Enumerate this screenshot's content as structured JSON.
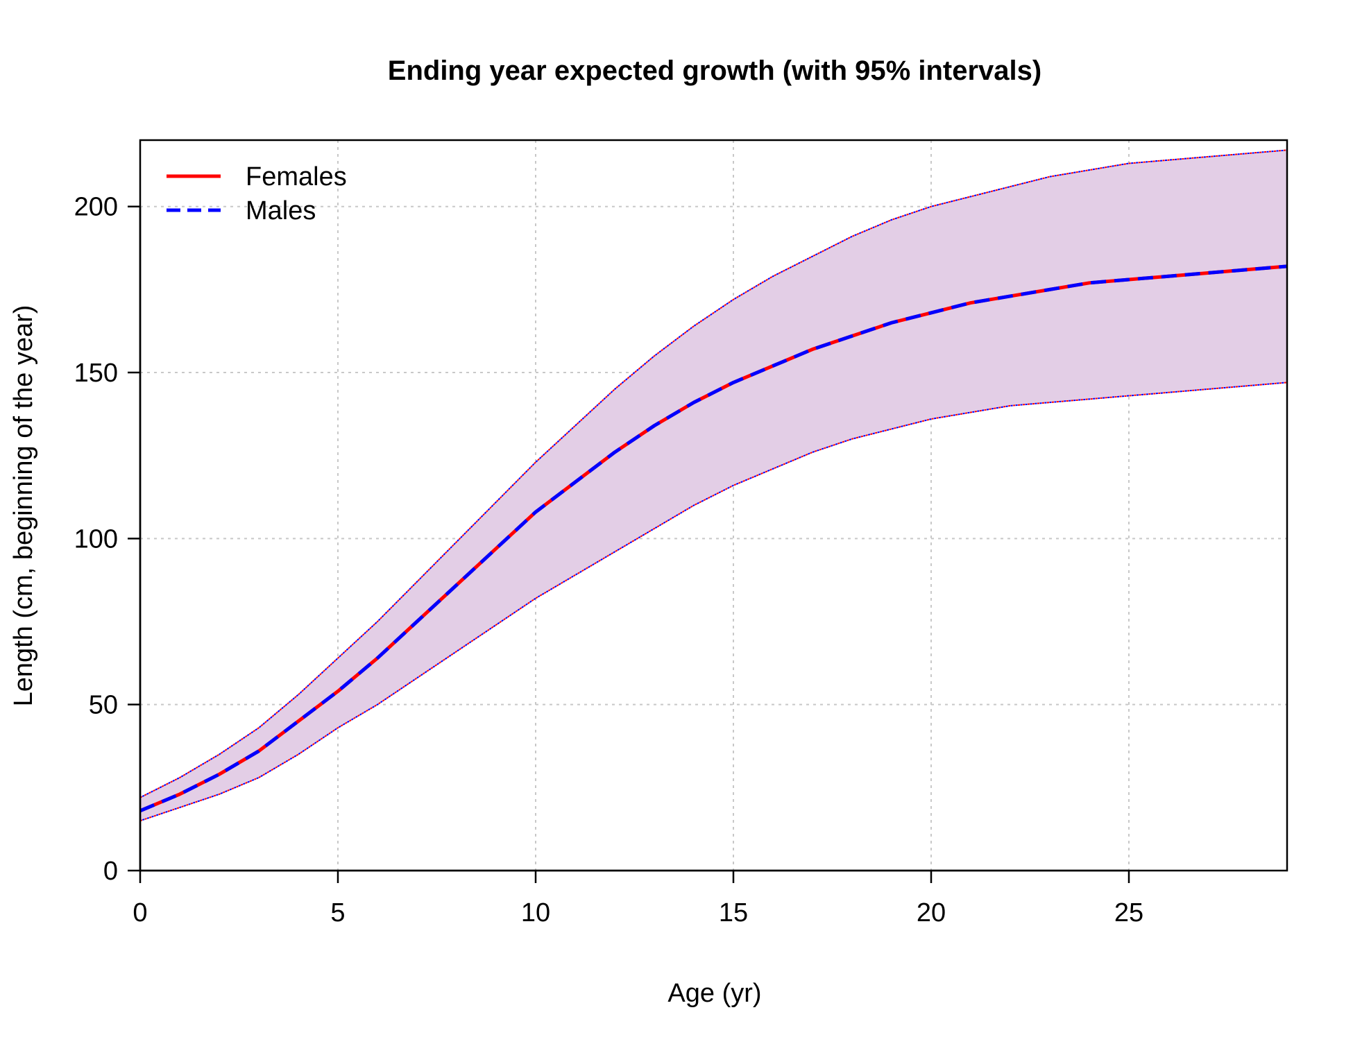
{
  "colors": {
    "background": "#ffffff",
    "band": "#e3cee6",
    "females": "#ff0000",
    "males": "#0000ff",
    "grid": "#c8c8c8",
    "axis": "#000000"
  },
  "chart_data": {
    "type": "line",
    "title": "Ending year expected growth (with 95% intervals)",
    "xlabel": "Age (yr)",
    "ylabel": "Length (cm, beginning of the year)",
    "xlim": [
      0,
      29
    ],
    "ylim": [
      0,
      220
    ],
    "x_ticks": [
      0,
      5,
      10,
      15,
      20,
      25
    ],
    "y_ticks": [
      0,
      50,
      100,
      150,
      200
    ],
    "grid": true,
    "legend_position": "top-left",
    "legend": [
      {
        "label": "Females",
        "color": "#ff0000",
        "style": "solid"
      },
      {
        "label": "Males",
        "color": "#0000ff",
        "style": "dashed"
      }
    ],
    "x": [
      0,
      1,
      2,
      3,
      4,
      5,
      6,
      7,
      8,
      9,
      10,
      11,
      12,
      13,
      14,
      15,
      16,
      17,
      18,
      19,
      20,
      21,
      22,
      23,
      24,
      25,
      26,
      27,
      28,
      29
    ],
    "series": [
      {
        "name": "Females",
        "color": "#ff0000",
        "style": "solid",
        "values": [
          18,
          23,
          29,
          36,
          45,
          54,
          64,
          75,
          86,
          97,
          108,
          117,
          126,
          134,
          141,
          147,
          152,
          157,
          161,
          165,
          168,
          171,
          173,
          175,
          177,
          178,
          179,
          180,
          181,
          182
        ],
        "upper": [
          22,
          28,
          35,
          43,
          53,
          64,
          75,
          87,
          99,
          111,
          123,
          134,
          145,
          155,
          164,
          172,
          179,
          185,
          191,
          196,
          200,
          203,
          206,
          209,
          211,
          213,
          214,
          215,
          216,
          217
        ],
        "lower": [
          15,
          19,
          23,
          28,
          35,
          43,
          50,
          58,
          66,
          74,
          82,
          89,
          96,
          103,
          110,
          116,
          121,
          126,
          130,
          133,
          136,
          138,
          140,
          141,
          142,
          143,
          144,
          145,
          146,
          147
        ]
      },
      {
        "name": "Males",
        "color": "#0000ff",
        "style": "dashed",
        "values": [
          18,
          23,
          29,
          36,
          45,
          54,
          64,
          75,
          86,
          97,
          108,
          117,
          126,
          134,
          141,
          147,
          152,
          157,
          161,
          165,
          168,
          171,
          173,
          175,
          177,
          178,
          179,
          180,
          181,
          182
        ],
        "upper": [
          22,
          28,
          35,
          43,
          53,
          64,
          75,
          87,
          99,
          111,
          123,
          134,
          145,
          155,
          164,
          172,
          179,
          185,
          191,
          196,
          200,
          203,
          206,
          209,
          211,
          213,
          214,
          215,
          216,
          217
        ],
        "lower": [
          15,
          19,
          23,
          28,
          35,
          43,
          50,
          58,
          66,
          74,
          82,
          89,
          96,
          103,
          110,
          116,
          121,
          126,
          130,
          133,
          136,
          138,
          140,
          141,
          142,
          143,
          144,
          145,
          146,
          147
        ]
      }
    ]
  }
}
